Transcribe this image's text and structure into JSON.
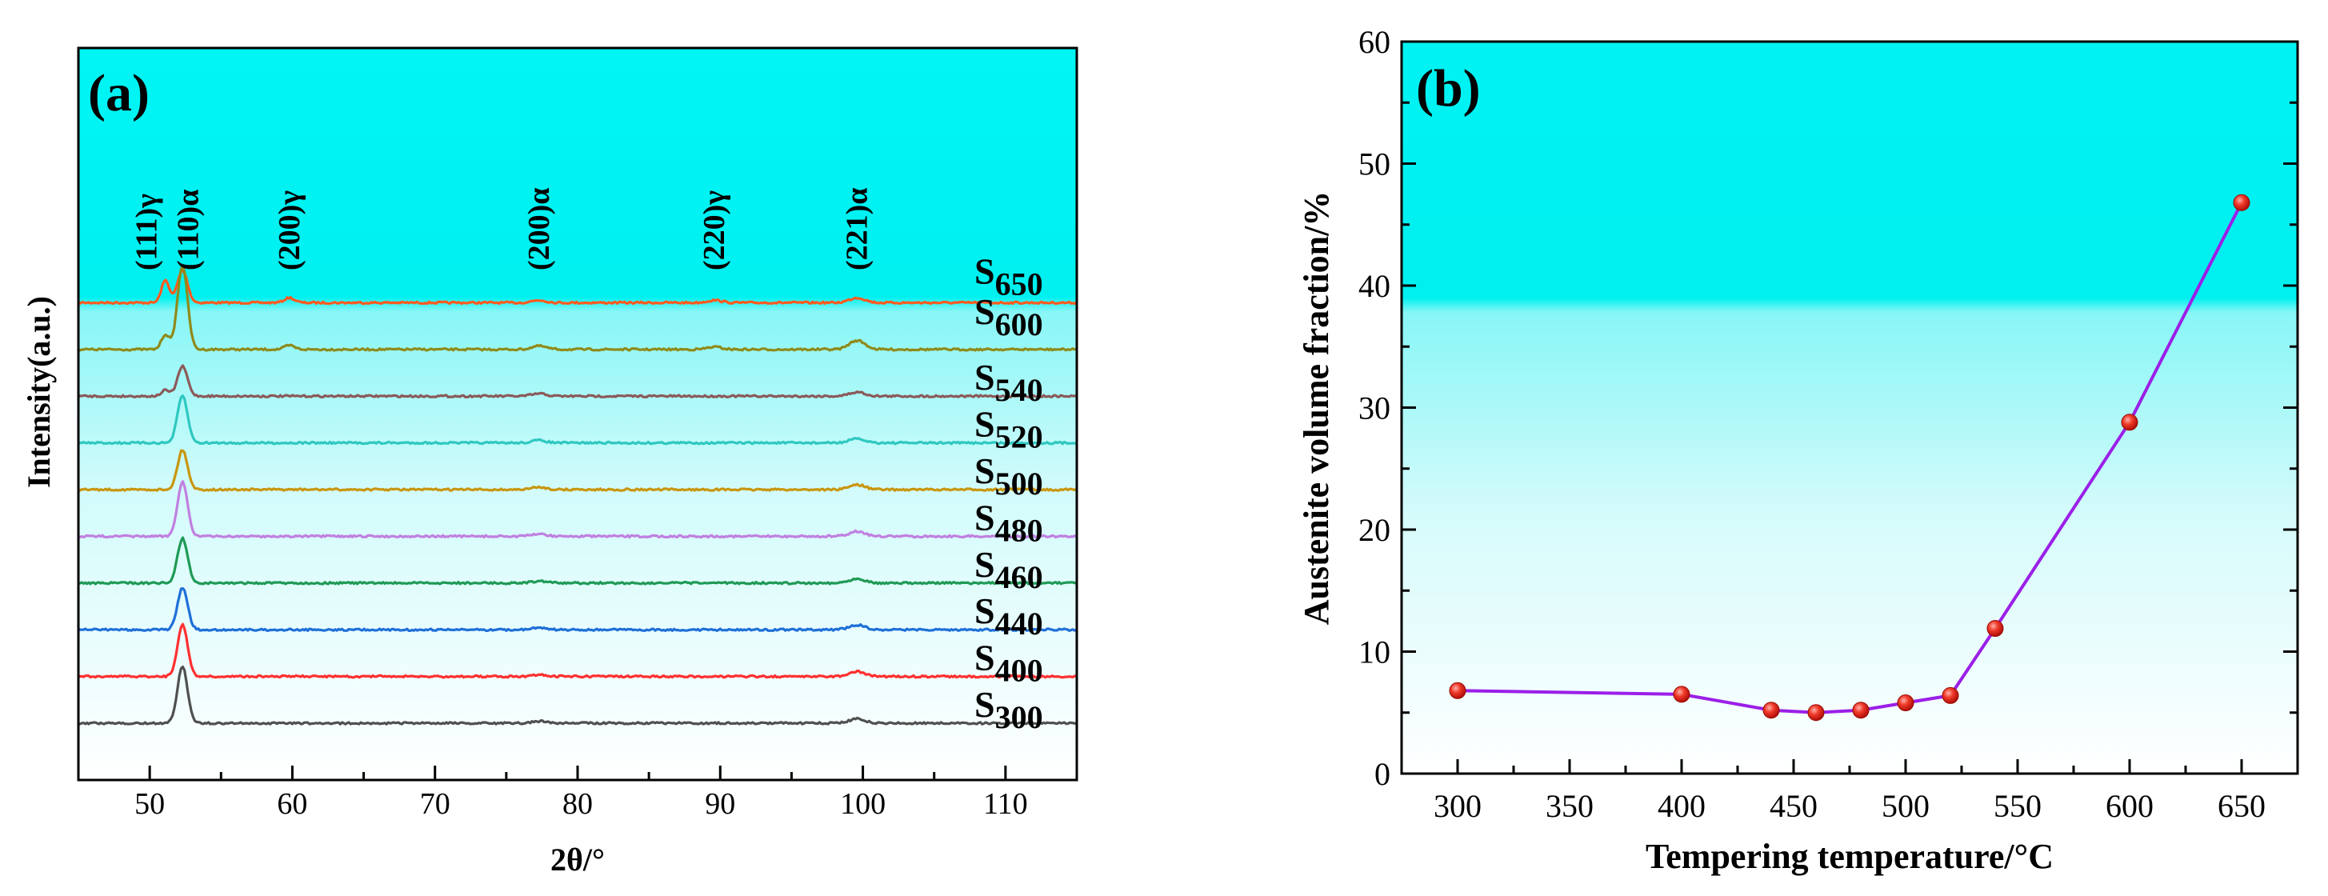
{
  "chart_data": [
    {
      "type": "line",
      "panel_label": "(a)",
      "xlabel": "2θ/°",
      "ylabel": "Intensity(a.u.)",
      "xlim": [
        45,
        115
      ],
      "xticks": [
        "50",
        "60",
        "70",
        "80",
        "90",
        "100",
        "110"
      ],
      "peaks": [
        {
          "label": "(111)γ",
          "two_theta": 51.1
        },
        {
          "label": "(110)α",
          "two_theta": 52.3
        },
        {
          "label": "(200)γ",
          "two_theta": 59.8
        },
        {
          "label": "(200)α",
          "two_theta": 77.3
        },
        {
          "label": "(220)γ",
          "two_theta": 89.6
        },
        {
          "label": "(221)α",
          "two_theta": 99.6
        }
      ],
      "series": [
        {
          "name": "S",
          "sub": "650",
          "color": "#ff5a1f",
          "offset": 10,
          "h110": 0.65,
          "h111": 0.45,
          "h200g": 0.1,
          "h200a": 0.05,
          "h220g": 0.05,
          "h221": 0.1
        },
        {
          "name": "S",
          "sub": "600",
          "color": "#8f8a1a",
          "offset": 9,
          "h110": 1.7,
          "h111": 0.3,
          "h200g": 0.08,
          "h200a": 0.07,
          "h220g": 0.05,
          "h221": 0.18
        },
        {
          "name": "S",
          "sub": "540",
          "color": "#8b5a5a",
          "offset": 8,
          "h110": 0.6,
          "h111": 0.12,
          "h200g": 0.0,
          "h200a": 0.05,
          "h220g": 0.0,
          "h221": 0.08
        },
        {
          "name": "S",
          "sub": "520",
          "color": "#2ec8c0",
          "offset": 7,
          "h110": 0.95,
          "h111": 0.0,
          "h200g": 0.0,
          "h200a": 0.05,
          "h220g": 0.0,
          "h221": 0.08
        },
        {
          "name": "S",
          "sub": "500",
          "color": "#c8960f",
          "offset": 6,
          "h110": 0.8,
          "h111": 0.0,
          "h200g": 0.0,
          "h200a": 0.05,
          "h220g": 0.0,
          "h221": 0.1
        },
        {
          "name": "S",
          "sub": "480",
          "color": "#c080e0",
          "offset": 5,
          "h110": 1.1,
          "h111": 0.0,
          "h200g": 0.0,
          "h200a": 0.05,
          "h220g": 0.0,
          "h221": 0.1
        },
        {
          "name": "S",
          "sub": "460",
          "color": "#1f9a55",
          "offset": 4,
          "h110": 0.9,
          "h111": 0.0,
          "h200g": 0.0,
          "h200a": 0.04,
          "h220g": 0.0,
          "h221": 0.09
        },
        {
          "name": "S",
          "sub": "440",
          "color": "#1f6fd8",
          "offset": 3,
          "h110": 0.85,
          "h111": 0.0,
          "h200g": 0.0,
          "h200a": 0.04,
          "h220g": 0.0,
          "h221": 0.1
        },
        {
          "name": "S",
          "sub": "400",
          "color": "#ff3030",
          "offset": 2,
          "h110": 1.05,
          "h111": 0.0,
          "h200g": 0.0,
          "h200a": 0.04,
          "h220g": 0.0,
          "h221": 0.1
        },
        {
          "name": "S",
          "sub": "300",
          "color": "#505050",
          "offset": 1,
          "h110": 1.15,
          "h111": 0.0,
          "h200g": 0.0,
          "h200a": 0.04,
          "h220g": 0.0,
          "h221": 0.09
        }
      ]
    },
    {
      "type": "line",
      "panel_label": "(b)",
      "xlabel": "Tempering temperature/°C",
      "ylabel": "Austenite volume fraction/%",
      "xlim": [
        275,
        675
      ],
      "ylim": [
        0,
        60
      ],
      "xticks": [
        "300",
        "350",
        "400",
        "450",
        "500",
        "550",
        "600",
        "650"
      ],
      "yticks": [
        "0",
        "10",
        "20",
        "30",
        "40",
        "50",
        "60"
      ],
      "x": [
        300,
        400,
        440,
        460,
        480,
        500,
        520,
        540,
        600,
        650
      ],
      "y": [
        6.8,
        6.5,
        5.2,
        5.0,
        5.2,
        5.8,
        6.4,
        11.9,
        28.8,
        46.8
      ],
      "line_color": "#9b1fe8",
      "marker_color": "#e8281e"
    }
  ]
}
